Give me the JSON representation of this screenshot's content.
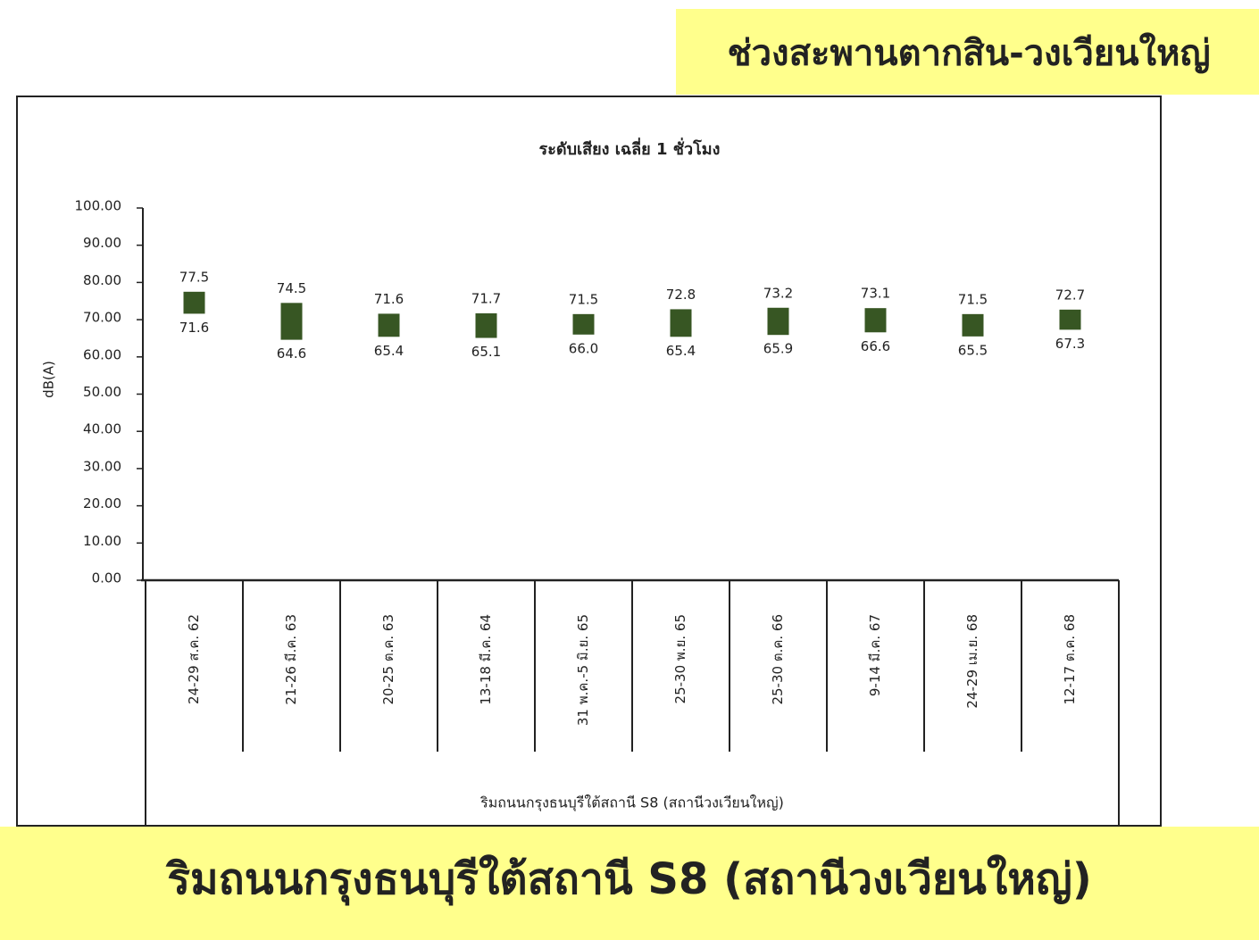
{
  "header": {
    "title": "ช่วงสะพานตากสิน-วงเวียนใหญ่"
  },
  "footer": {
    "title": "ริมถนนกรุงธนบุรีใต้สถานี S8 (สถานีวงเวียนใหญ่)"
  },
  "chart_data": {
    "type": "range_bar",
    "title": "ระดับเสียง เฉลี่ย 1 ชั่วโมง",
    "y_label": "dB(A)",
    "x_label": "ริมถนนกรุงธนบุรีใต้สถานี S8 (สถานีวงเวียนใหญ่)",
    "categories": [
      "24-29 ส.ค. 62",
      "21-26 มี.ค. 63",
      "20-25 ต.ค. 63",
      "13-18 มี.ค. 64",
      "31 พ.ค.-5 มิ.ย. 65",
      "25-30 พ.ย. 65",
      "25-30 ต.ค. 66",
      "9-14 มี.ค. 67",
      "24-29 เม.ย. 68",
      "12-17 ต.ค. 68"
    ],
    "high": {
      "values": [
        77.5,
        74.5,
        71.6,
        71.7,
        71.5,
        72.8,
        73.2,
        73.1,
        71.5,
        72.7
      ],
      "value_labels": [
        "77.5",
        "74.5",
        "71.6",
        "71.7",
        "71.5",
        "72.8",
        "73.2",
        "73.1",
        "71.5",
        "72.7"
      ]
    },
    "low": {
      "values": [
        71.6,
        64.6,
        65.4,
        65.1,
        66.0,
        65.4,
        65.9,
        66.6,
        65.5,
        67.3
      ],
      "value_labels": [
        "71.6",
        "64.6",
        "65.4",
        "65.1",
        "66.0",
        "65.4",
        "65.9",
        "66.6",
        "65.5",
        "67.3"
      ]
    },
    "color": "#375623",
    "ylim": [
      0,
      100
    ],
    "yticks": [
      {
        "value": 0,
        "label": "0.00"
      },
      {
        "value": 10,
        "label": "10.00"
      },
      {
        "value": 20,
        "label": "20.00"
      },
      {
        "value": 30,
        "label": "30.00"
      },
      {
        "value": 40,
        "label": "40.00"
      },
      {
        "value": 50,
        "label": "50.00"
      },
      {
        "value": 60,
        "label": "60.00"
      },
      {
        "value": 70,
        "label": "70.00"
      },
      {
        "value": 80,
        "label": "80.00"
      },
      {
        "value": 90,
        "label": "90.00"
      },
      {
        "value": 100,
        "label": "100.00"
      }
    ]
  }
}
